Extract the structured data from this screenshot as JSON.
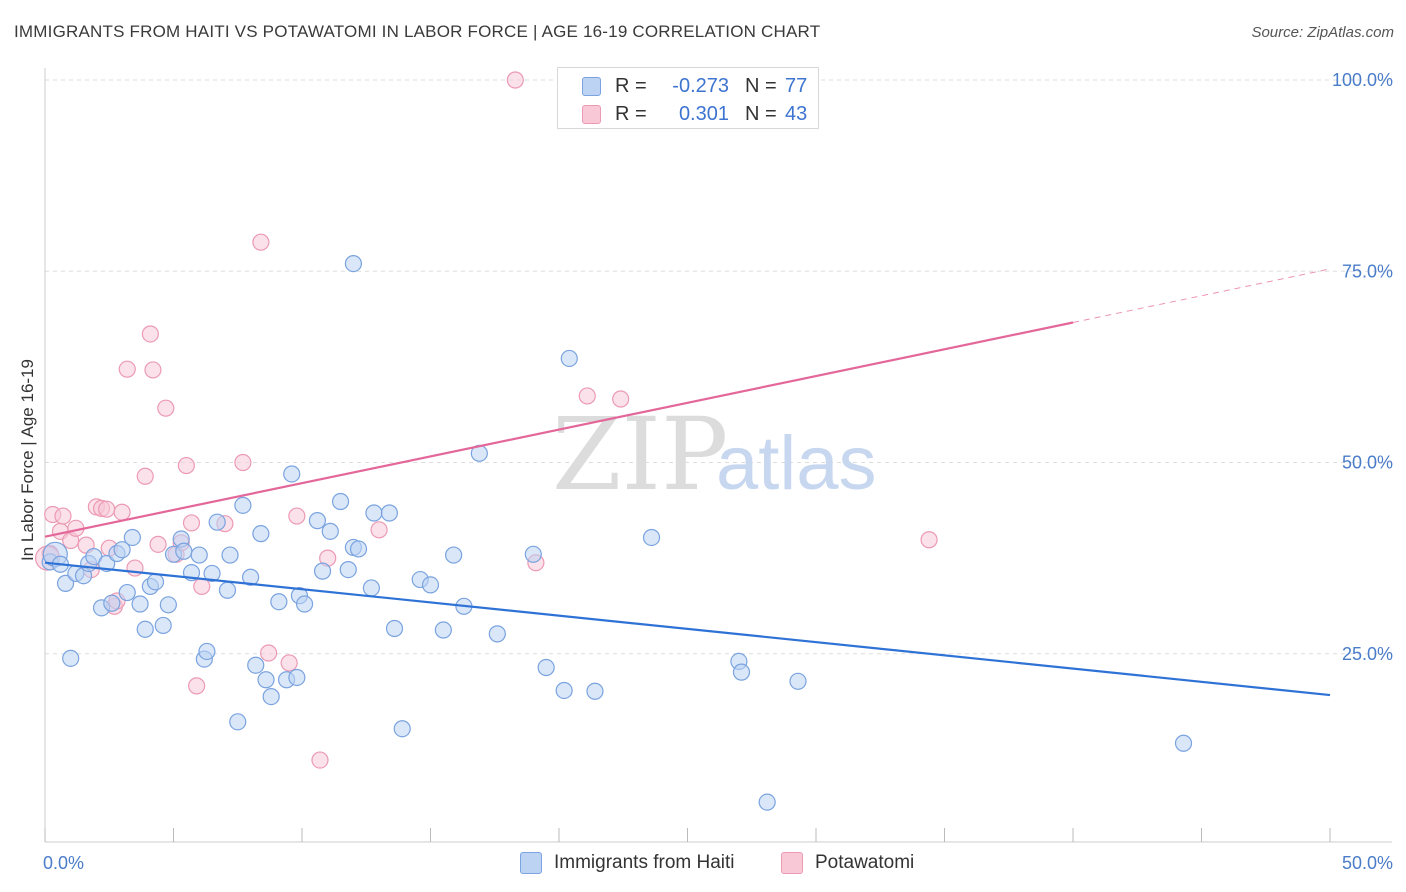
{
  "title": "IMMIGRANTS FROM HAITI VS POTAWATOMI IN LABOR FORCE | AGE 16-19 CORRELATION CHART",
  "source": "Source: ZipAtlas.com",
  "watermark": {
    "zip": "ZIP",
    "atlas": "atlas"
  },
  "colors": {
    "haiti_fill": "#bcd3f4",
    "haiti_stroke": "#7aa3df",
    "haiti_line": "#2f72d6",
    "potawatomi_fill": "#f8c8d7",
    "potawatomi_stroke": "#ec9ab4",
    "potawatomi_line": "#e4679a",
    "tick_text": "#4a7cc9",
    "grid": "#dddddd"
  },
  "legend_top": {
    "rows": [
      {
        "r_label": "R =",
        "r_value": "-0.273",
        "n_label": "N =",
        "n_value": "77"
      },
      {
        "r_label": "R =",
        "r_value": "0.301",
        "n_label": "N =",
        "n_value": "43"
      }
    ]
  },
  "legend_bottom": {
    "items": [
      {
        "label": "Immigrants from Haiti"
      },
      {
        "label": "Potawatomi"
      }
    ]
  },
  "chart_data": {
    "type": "scatter",
    "title": "IMMIGRANTS FROM HAITI VS POTAWATOMI IN LABOR FORCE | AGE 16-19 CORRELATION CHART",
    "xlabel": "",
    "ylabel": "In Labor Force | Age 16-19",
    "xlim": [
      0,
      50
    ],
    "ylim": [
      0,
      100
    ],
    "x_tick_labels": [
      "0.0%",
      "50.0%"
    ],
    "y_tick_values": [
      25,
      50,
      75,
      100
    ],
    "y_tick_labels": [
      "25.0%",
      "50.0%",
      "75.0%",
      "100.0%"
    ],
    "grid": true,
    "legend_position": "top-center",
    "series": [
      {
        "name": "Immigrants from Haiti",
        "r": -0.273,
        "n": 77,
        "trend": {
          "x0": 0,
          "y0": 36.9,
          "x1": 50,
          "y1": 19.6
        },
        "points": [
          [
            0.2,
            37.0
          ],
          [
            0.4,
            38.0
          ],
          [
            0.6,
            36.7
          ],
          [
            0.8,
            34.2
          ],
          [
            1.0,
            24.4
          ],
          [
            1.2,
            35.5
          ],
          [
            1.5,
            35.2
          ],
          [
            1.7,
            36.8
          ],
          [
            1.9,
            37.7
          ],
          [
            2.2,
            31.0
          ],
          [
            2.4,
            36.8
          ],
          [
            2.6,
            31.6
          ],
          [
            2.8,
            38.1
          ],
          [
            3.0,
            38.6
          ],
          [
            3.2,
            33.0
          ],
          [
            3.4,
            40.2
          ],
          [
            3.7,
            31.5
          ],
          [
            3.9,
            28.2
          ],
          [
            4.1,
            33.8
          ],
          [
            4.3,
            34.4
          ],
          [
            4.6,
            28.7
          ],
          [
            4.8,
            31.4
          ],
          [
            5.0,
            38.0
          ],
          [
            5.3,
            40.0
          ],
          [
            5.4,
            38.4
          ],
          [
            5.7,
            35.6
          ],
          [
            6.0,
            37.9
          ],
          [
            6.2,
            24.3
          ],
          [
            6.3,
            25.3
          ],
          [
            6.5,
            35.5
          ],
          [
            6.7,
            42.2
          ],
          [
            7.1,
            33.3
          ],
          [
            7.2,
            37.9
          ],
          [
            7.5,
            16.1
          ],
          [
            7.7,
            44.4
          ],
          [
            8.0,
            35.0
          ],
          [
            8.2,
            23.5
          ],
          [
            8.4,
            40.7
          ],
          [
            8.6,
            21.6
          ],
          [
            8.8,
            19.4
          ],
          [
            9.1,
            31.8
          ],
          [
            9.4,
            21.6
          ],
          [
            9.6,
            48.5
          ],
          [
            9.8,
            21.9
          ],
          [
            9.9,
            32.6
          ],
          [
            10.1,
            31.5
          ],
          [
            10.6,
            42.4
          ],
          [
            10.8,
            35.8
          ],
          [
            11.1,
            41.0
          ],
          [
            11.5,
            44.9
          ],
          [
            11.8,
            36.0
          ],
          [
            12.0,
            38.9
          ],
          [
            12.2,
            38.7
          ],
          [
            12.7,
            33.6
          ],
          [
            12.8,
            43.4
          ],
          [
            13.4,
            43.4
          ],
          [
            13.6,
            28.3
          ],
          [
            13.9,
            15.2
          ],
          [
            14.6,
            34.7
          ],
          [
            15.0,
            34.0
          ],
          [
            15.5,
            28.1
          ],
          [
            15.9,
            37.9
          ],
          [
            16.3,
            31.2
          ],
          [
            16.9,
            51.2
          ],
          [
            17.6,
            27.6
          ],
          [
            19.0,
            38.0
          ],
          [
            19.5,
            23.2
          ],
          [
            20.2,
            20.2
          ],
          [
            20.4,
            63.6
          ],
          [
            21.4,
            20.1
          ],
          [
            23.6,
            40.2
          ],
          [
            27.0,
            24.0
          ],
          [
            27.1,
            22.6
          ],
          [
            28.1,
            5.6
          ],
          [
            29.3,
            21.4
          ],
          [
            12.0,
            76.0
          ],
          [
            44.3,
            13.3
          ]
        ]
      },
      {
        "name": "Potawatomi",
        "r": 0.301,
        "n": 43,
        "trend": {
          "x0": 0,
          "y0": 40.3,
          "x1": 40,
          "y1": 68.3,
          "dash_to_x": 50,
          "dash_to_y": 75.3
        },
        "points": [
          [
            0.2,
            38.1
          ],
          [
            0.3,
            43.2
          ],
          [
            0.6,
            41.0
          ],
          [
            0.7,
            43.0
          ],
          [
            1.0,
            39.8
          ],
          [
            1.2,
            41.4
          ],
          [
            1.6,
            39.2
          ],
          [
            1.8,
            36.0
          ],
          [
            2.0,
            44.2
          ],
          [
            2.2,
            44.0
          ],
          [
            2.4,
            43.9
          ],
          [
            2.5,
            38.8
          ],
          [
            2.7,
            31.2
          ],
          [
            2.8,
            31.9
          ],
          [
            3.0,
            43.5
          ],
          [
            3.2,
            62.2
          ],
          [
            3.5,
            36.2
          ],
          [
            3.9,
            48.2
          ],
          [
            4.1,
            66.8
          ],
          [
            4.2,
            62.1
          ],
          [
            4.4,
            39.3
          ],
          [
            4.7,
            57.1
          ],
          [
            5.1,
            38.0
          ],
          [
            5.3,
            39.5
          ],
          [
            5.5,
            49.6
          ],
          [
            5.7,
            42.1
          ],
          [
            5.9,
            20.8
          ],
          [
            6.1,
            33.8
          ],
          [
            7.0,
            42.0
          ],
          [
            7.7,
            50.0
          ],
          [
            8.4,
            78.8
          ],
          [
            8.7,
            25.1
          ],
          [
            9.5,
            23.8
          ],
          [
            9.8,
            43.0
          ],
          [
            10.7,
            11.1
          ],
          [
            11.0,
            37.5
          ],
          [
            13.0,
            41.2
          ],
          [
            18.3,
            100.0
          ],
          [
            19.1,
            36.9
          ],
          [
            21.1,
            58.7
          ],
          [
            22.4,
            58.3
          ],
          [
            34.4,
            39.9
          ],
          [
            0.1,
            37.5
          ]
        ]
      }
    ]
  }
}
